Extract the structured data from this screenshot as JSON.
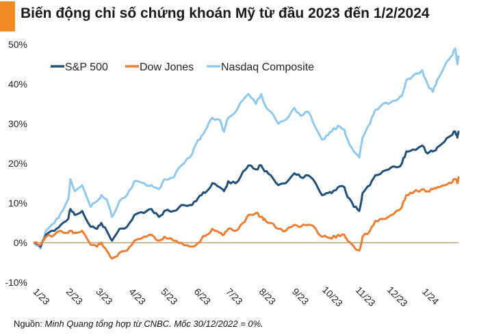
{
  "title": "Biến động chỉ số chứng khoán Mỹ từ đầu 2023 đến 1/2/2024",
  "source": {
    "label": "Nguồn: ",
    "text": "Minh Quang tổng hợp từ CNBC. Mốc 30/12/2022 = 0%."
  },
  "colors": {
    "accent": "#f08a24",
    "sp500": "#1f4e79",
    "dow": "#ed7d31",
    "nasdaq": "#8fc8ee",
    "zero_line": "#a69558"
  },
  "chart_data": {
    "type": "line",
    "title": "Biến động chỉ số chứng khoán Mỹ từ đầu 2023 đến 1/2/2024",
    "xlabel": "",
    "ylabel": "",
    "x_range": [
      "2022-12-30",
      "2024-02-01"
    ],
    "ylim": [
      -10,
      50
    ],
    "y_ticks": [
      -10,
      0,
      10,
      20,
      30,
      40,
      50
    ],
    "y_tick_labels": [
      "-10%",
      "0%",
      "10%",
      "20%",
      "30%",
      "40%",
      "50%"
    ],
    "x_ticks": [
      {
        "date": "2023-01-01",
        "label": "1/23"
      },
      {
        "date": "2023-02-01",
        "label": "2/23"
      },
      {
        "date": "2023-03-01",
        "label": "3/23"
      },
      {
        "date": "2023-04-01",
        "label": "4/23"
      },
      {
        "date": "2023-05-01",
        "label": "5/23"
      },
      {
        "date": "2023-06-01",
        "label": "6/23"
      },
      {
        "date": "2023-07-01",
        "label": "7/23"
      },
      {
        "date": "2023-08-01",
        "label": "8/23"
      },
      {
        "date": "2023-09-01",
        "label": "9/23"
      },
      {
        "date": "2023-10-01",
        "label": "10/23"
      },
      {
        "date": "2023-11-01",
        "label": "11/23"
      },
      {
        "date": "2023-12-01",
        "label": "12/23"
      },
      {
        "date": "2024-01-01",
        "label": "1/24"
      }
    ],
    "legend_position": "top-left",
    "grid": false,
    "series": [
      {
        "name": "Nasdaq Composite",
        "color": "#8fc8ee",
        "points": [
          [
            "2022-12-30",
            0
          ],
          [
            "2023-01-05",
            -1.5
          ],
          [
            "2023-01-10",
            3
          ],
          [
            "2023-01-18",
            5
          ],
          [
            "2023-01-24",
            7.5
          ],
          [
            "2023-01-31",
            11
          ],
          [
            "2023-02-02",
            16
          ],
          [
            "2023-02-06",
            13
          ],
          [
            "2023-02-13",
            14.5
          ],
          [
            "2023-02-21",
            9
          ],
          [
            "2023-02-27",
            10.5
          ],
          [
            "2023-03-03",
            12
          ],
          [
            "2023-03-08",
            11
          ],
          [
            "2023-03-13",
            6.5
          ],
          [
            "2023-03-20",
            10.5
          ],
          [
            "2023-03-27",
            12
          ],
          [
            "2023-04-03",
            15.5
          ],
          [
            "2023-04-12",
            15
          ],
          [
            "2023-04-19",
            14.5
          ],
          [
            "2023-04-26",
            13.5
          ],
          [
            "2023-05-01",
            16
          ],
          [
            "2023-05-10",
            16.5
          ],
          [
            "2023-05-17",
            19.5
          ],
          [
            "2023-05-25",
            21.5
          ],
          [
            "2023-05-31",
            25
          ],
          [
            "2023-06-05",
            27
          ],
          [
            "2023-06-10",
            29
          ],
          [
            "2023-06-15",
            31.5
          ],
          [
            "2023-06-22",
            31
          ],
          [
            "2023-06-26",
            28
          ],
          [
            "2023-06-30",
            31.5
          ],
          [
            "2023-07-07",
            33
          ],
          [
            "2023-07-14",
            36
          ],
          [
            "2023-07-19",
            37.5
          ],
          [
            "2023-07-26",
            35
          ],
          [
            "2023-07-31",
            37.5
          ],
          [
            "2023-08-03",
            35
          ],
          [
            "2023-08-09",
            33
          ],
          [
            "2023-08-16",
            30
          ],
          [
            "2023-08-23",
            31
          ],
          [
            "2023-08-31",
            34
          ],
          [
            "2023-09-06",
            32
          ],
          [
            "2023-09-13",
            33
          ],
          [
            "2023-09-20",
            29
          ],
          [
            "2023-09-26",
            26
          ],
          [
            "2023-09-30",
            27
          ],
          [
            "2023-10-05",
            28
          ],
          [
            "2023-10-11",
            29.5
          ],
          [
            "2023-10-17",
            28.5
          ],
          [
            "2023-10-20",
            26
          ],
          [
            "2023-10-26",
            23
          ],
          [
            "2023-10-31",
            21.5
          ],
          [
            "2023-11-03",
            26.5
          ],
          [
            "2023-11-10",
            30
          ],
          [
            "2023-11-15",
            33.5
          ],
          [
            "2023-11-22",
            35
          ],
          [
            "2023-11-30",
            35.5
          ],
          [
            "2023-12-05",
            36
          ],
          [
            "2023-12-10",
            37
          ],
          [
            "2023-12-14",
            41
          ],
          [
            "2023-12-20",
            42
          ],
          [
            "2023-12-29",
            43.5
          ],
          [
            "2024-01-03",
            40
          ],
          [
            "2024-01-08",
            38
          ],
          [
            "2024-01-12",
            41
          ],
          [
            "2024-01-19",
            44.5
          ],
          [
            "2024-01-25",
            47
          ],
          [
            "2024-01-29",
            49
          ],
          [
            "2024-01-31",
            45
          ],
          [
            "2024-02-01",
            47
          ]
        ]
      },
      {
        "name": "S&P 500",
        "color": "#1f4e79",
        "points": [
          [
            "2022-12-30",
            0
          ],
          [
            "2023-01-05",
            -1
          ],
          [
            "2023-01-10",
            2
          ],
          [
            "2023-01-18",
            3
          ],
          [
            "2023-01-24",
            4.5
          ],
          [
            "2023-01-31",
            6
          ],
          [
            "2023-02-02",
            8.5
          ],
          [
            "2023-02-06",
            7
          ],
          [
            "2023-02-13",
            8
          ],
          [
            "2023-02-21",
            4
          ],
          [
            "2023-02-27",
            3.5
          ],
          [
            "2023-03-03",
            5
          ],
          [
            "2023-03-08",
            3
          ],
          [
            "2023-03-13",
            0.5
          ],
          [
            "2023-03-20",
            3.5
          ],
          [
            "2023-03-27",
            4
          ],
          [
            "2023-04-03",
            7
          ],
          [
            "2023-04-12",
            7.5
          ],
          [
            "2023-04-19",
            8.5
          ],
          [
            "2023-04-26",
            6.5
          ],
          [
            "2023-05-01",
            8
          ],
          [
            "2023-05-10",
            8
          ],
          [
            "2023-05-17",
            9.5
          ],
          [
            "2023-05-25",
            9.5
          ],
          [
            "2023-05-31",
            10.5
          ],
          [
            "2023-06-05",
            12
          ],
          [
            "2023-06-10",
            13
          ],
          [
            "2023-06-15",
            15
          ],
          [
            "2023-06-22",
            14
          ],
          [
            "2023-06-26",
            13
          ],
          [
            "2023-06-30",
            15.5
          ],
          [
            "2023-07-07",
            15
          ],
          [
            "2023-07-14",
            18
          ],
          [
            "2023-07-19",
            19.5
          ],
          [
            "2023-07-26",
            18.5
          ],
          [
            "2023-07-31",
            19.5
          ],
          [
            "2023-08-03",
            18
          ],
          [
            "2023-08-09",
            17
          ],
          [
            "2023-08-16",
            14.5
          ],
          [
            "2023-08-23",
            15
          ],
          [
            "2023-08-31",
            17.5
          ],
          [
            "2023-09-06",
            16.5
          ],
          [
            "2023-09-13",
            17
          ],
          [
            "2023-09-20",
            15
          ],
          [
            "2023-09-26",
            12
          ],
          [
            "2023-09-30",
            12.5
          ],
          [
            "2023-10-05",
            12.5
          ],
          [
            "2023-10-11",
            14
          ],
          [
            "2023-10-17",
            14
          ],
          [
            "2023-10-20",
            11.5
          ],
          [
            "2023-10-26",
            9
          ],
          [
            "2023-10-31",
            8
          ],
          [
            "2023-11-03",
            12.5
          ],
          [
            "2023-11-10",
            14.5
          ],
          [
            "2023-11-15",
            17
          ],
          [
            "2023-11-22",
            18
          ],
          [
            "2023-11-30",
            19
          ],
          [
            "2023-12-05",
            19
          ],
          [
            "2023-12-10",
            20
          ],
          [
            "2023-12-14",
            23
          ],
          [
            "2023-12-20",
            23.5
          ],
          [
            "2023-12-29",
            24.5
          ],
          [
            "2024-01-03",
            22.5
          ],
          [
            "2024-01-08",
            23
          ],
          [
            "2024-01-12",
            24
          ],
          [
            "2024-01-19",
            25.5
          ],
          [
            "2024-01-25",
            27
          ],
          [
            "2024-01-29",
            28
          ],
          [
            "2024-01-31",
            26.5
          ],
          [
            "2024-02-01",
            28
          ]
        ]
      },
      {
        "name": "Dow Jones",
        "color": "#ed7d31",
        "points": [
          [
            "2022-12-30",
            0
          ],
          [
            "2023-01-05",
            -0.5
          ],
          [
            "2023-01-10",
            1.5
          ],
          [
            "2023-01-18",
            2
          ],
          [
            "2023-01-24",
            3
          ],
          [
            "2023-01-31",
            2.5
          ],
          [
            "2023-02-02",
            3
          ],
          [
            "2023-02-06",
            2.5
          ],
          [
            "2023-02-13",
            3
          ],
          [
            "2023-02-21",
            -0.5
          ],
          [
            "2023-02-27",
            -1
          ],
          [
            "2023-03-03",
            0
          ],
          [
            "2023-03-08",
            -2
          ],
          [
            "2023-03-13",
            -4
          ],
          [
            "2023-03-20",
            -2.5
          ],
          [
            "2023-03-27",
            -2
          ],
          [
            "2023-04-03",
            0.5
          ],
          [
            "2023-04-12",
            1.5
          ],
          [
            "2023-04-19",
            2
          ],
          [
            "2023-04-26",
            0.5
          ],
          [
            "2023-05-01",
            1.5
          ],
          [
            "2023-05-10",
            0.5
          ],
          [
            "2023-05-17",
            0
          ],
          [
            "2023-05-25",
            -1
          ],
          [
            "2023-05-31",
            -0.5
          ],
          [
            "2023-06-05",
            1
          ],
          [
            "2023-06-10",
            2
          ],
          [
            "2023-06-15",
            3.5
          ],
          [
            "2023-06-22",
            2.5
          ],
          [
            "2023-06-26",
            2
          ],
          [
            "2023-06-30",
            3.5
          ],
          [
            "2023-07-07",
            3
          ],
          [
            "2023-07-14",
            5
          ],
          [
            "2023-07-19",
            7
          ],
          [
            "2023-07-26",
            7.5
          ],
          [
            "2023-07-31",
            6.5
          ],
          [
            "2023-08-03",
            6
          ],
          [
            "2023-08-09",
            5
          ],
          [
            "2023-08-16",
            3.5
          ],
          [
            "2023-08-23",
            3
          ],
          [
            "2023-08-31",
            4.5
          ],
          [
            "2023-09-06",
            4
          ],
          [
            "2023-09-13",
            4.5
          ],
          [
            "2023-09-20",
            3.5
          ],
          [
            "2023-09-26",
            1.5
          ],
          [
            "2023-09-30",
            1.5
          ],
          [
            "2023-10-05",
            1
          ],
          [
            "2023-10-11",
            2
          ],
          [
            "2023-10-17",
            2
          ],
          [
            "2023-10-20",
            0.5
          ],
          [
            "2023-10-26",
            -1
          ],
          [
            "2023-10-31",
            -2
          ],
          [
            "2023-11-03",
            1.5
          ],
          [
            "2023-11-10",
            3
          ],
          [
            "2023-11-15",
            5.5
          ],
          [
            "2023-11-22",
            6
          ],
          [
            "2023-11-30",
            7
          ],
          [
            "2023-12-05",
            8
          ],
          [
            "2023-12-10",
            9
          ],
          [
            "2023-12-14",
            12
          ],
          [
            "2023-12-20",
            12.5
          ],
          [
            "2023-12-29",
            13.5
          ],
          [
            "2024-01-03",
            13
          ],
          [
            "2024-01-08",
            13.5
          ],
          [
            "2024-01-12",
            14
          ],
          [
            "2024-01-19",
            14.5
          ],
          [
            "2024-01-25",
            15
          ],
          [
            "2024-01-29",
            16
          ],
          [
            "2024-01-31",
            15
          ],
          [
            "2024-02-01",
            16.5
          ]
        ]
      }
    ]
  }
}
